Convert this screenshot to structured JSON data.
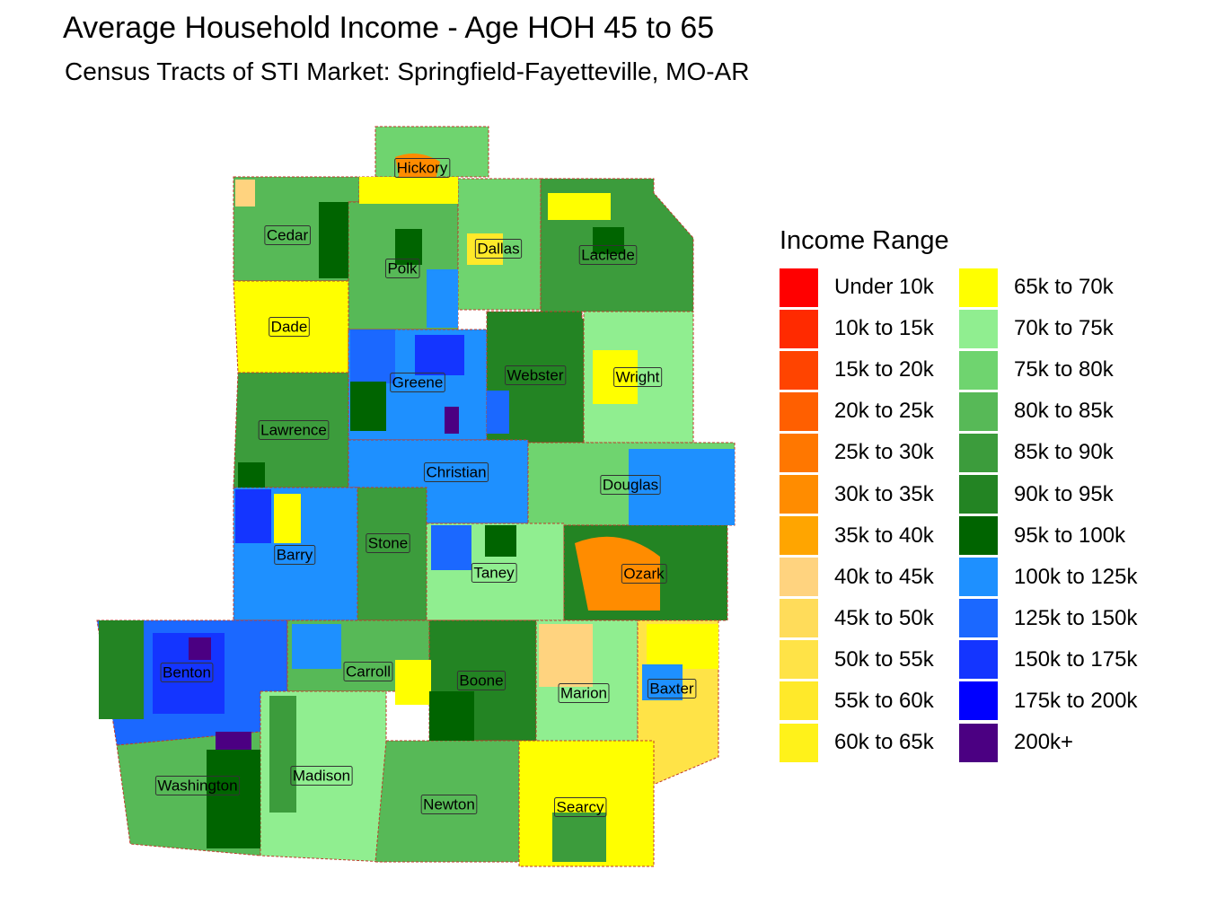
{
  "title": "Average Household Income - Age HOH 45 to 65",
  "subtitle": "Census Tracts of STI Market: Springfield-Fayetteville, MO-AR",
  "legend": {
    "title": "Income Range",
    "items": [
      {
        "label": "Under 10k",
        "color": "#ff0000"
      },
      {
        "label": "10k to 15k",
        "color": "#ff2a00"
      },
      {
        "label": "15k to 20k",
        "color": "#ff4400"
      },
      {
        "label": "20k to 25k",
        "color": "#ff5f00"
      },
      {
        "label": "25k to 30k",
        "color": "#ff7700"
      },
      {
        "label": "30k to 35k",
        "color": "#ff8c00"
      },
      {
        "label": "35k to 40k",
        "color": "#ffa500"
      },
      {
        "label": "40k to 45k",
        "color": "#ffd37f"
      },
      {
        "label": "45k to 50k",
        "color": "#ffdc5a"
      },
      {
        "label": "50k to 55k",
        "color": "#ffe347"
      },
      {
        "label": "55k to 60k",
        "color": "#ffe92a"
      },
      {
        "label": "60k to 65k",
        "color": "#fff21a"
      },
      {
        "label": "65k to 70k",
        "color": "#ffff00"
      },
      {
        "label": "70k to 75k",
        "color": "#90ee90"
      },
      {
        "label": "75k to 80k",
        "color": "#6fd46f"
      },
      {
        "label": "80k to 85k",
        "color": "#57b957"
      },
      {
        "label": "85k to 90k",
        "color": "#3c9c3c"
      },
      {
        "label": "90k to 95k",
        "color": "#238423"
      },
      {
        "label": "95k to 100k",
        "color": "#006400"
      },
      {
        "label": "100k to 125k",
        "color": "#1e90ff"
      },
      {
        "label": "125k to 150k",
        "color": "#1b68ff"
      },
      {
        "label": "150k to 175k",
        "color": "#1435ff"
      },
      {
        "label": "175k to 200k",
        "color": "#0000ff"
      },
      {
        "label": "200k+",
        "color": "#4b0082"
      }
    ]
  },
  "counties": [
    {
      "name": "Hickory",
      "fill": "#6fd46f"
    },
    {
      "name": "Cedar",
      "fill": "#57b957"
    },
    {
      "name": "Polk",
      "fill": "#57b957"
    },
    {
      "name": "Dallas",
      "fill": "#6fd46f"
    },
    {
      "name": "Laclede",
      "fill": "#3c9c3c"
    },
    {
      "name": "Dade",
      "fill": "#ffff00"
    },
    {
      "name": "Greene",
      "fill": "#1e90ff"
    },
    {
      "name": "Webster",
      "fill": "#238423"
    },
    {
      "name": "Wright",
      "fill": "#90ee90"
    },
    {
      "name": "Lawrence",
      "fill": "#3c9c3c"
    },
    {
      "name": "Christian",
      "fill": "#1e90ff"
    },
    {
      "name": "Douglas",
      "fill": "#6fd46f"
    },
    {
      "name": "Barry",
      "fill": "#1e90ff"
    },
    {
      "name": "Stone",
      "fill": "#3c9c3c"
    },
    {
      "name": "Taney",
      "fill": "#90ee90"
    },
    {
      "name": "Ozark",
      "fill": "#238423"
    },
    {
      "name": "Benton",
      "fill": "#1b68ff"
    },
    {
      "name": "Carroll",
      "fill": "#57b957"
    },
    {
      "name": "Boone",
      "fill": "#238423"
    },
    {
      "name": "Marion",
      "fill": "#90ee90"
    },
    {
      "name": "Baxter",
      "fill": "#ffe347"
    },
    {
      "name": "Washington",
      "fill": "#57b957"
    },
    {
      "name": "Madison",
      "fill": "#90ee90"
    },
    {
      "name": "Newton",
      "fill": "#57b957"
    },
    {
      "name": "Searcy",
      "fill": "#ffff00"
    }
  ]
}
